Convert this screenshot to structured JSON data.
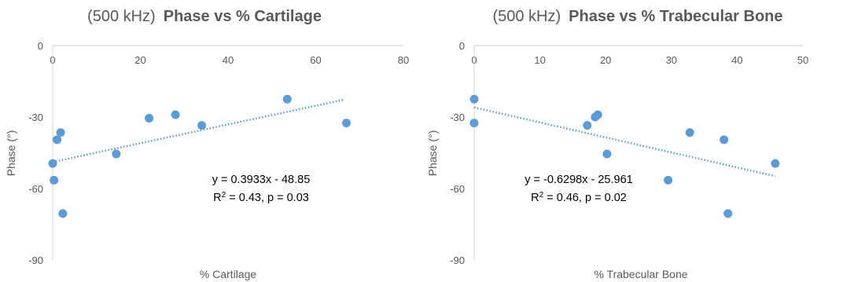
{
  "chart_data": [
    {
      "type": "scatter",
      "title_prefix": "(500 kHz)",
      "title_main": "Phase vs % Cartilage",
      "xlabel": "% Cartilage",
      "ylabel": "Phase (°)",
      "xlim": [
        0,
        80
      ],
      "ylim": [
        -90,
        0
      ],
      "xticks": [
        0,
        20,
        40,
        60,
        80
      ],
      "yticks": [
        0,
        -30,
        -60,
        -90
      ],
      "grid": false,
      "marker_color": "#5B9BD5",
      "trendline_color": "#5B9BD5",
      "x": [
        0,
        0.3,
        1,
        1.8,
        2.3,
        14.5,
        22,
        28,
        34,
        53.5,
        67
      ],
      "y": [
        -49.5,
        -56.5,
        -39.5,
        -36.5,
        -70.5,
        -45.5,
        -30.5,
        -29,
        -33.5,
        -22.5,
        -32.5
      ],
      "trendline": {
        "slope": 0.3933,
        "intercept": -48.85,
        "x_range": [
          0,
          66.5
        ]
      },
      "annotation": {
        "equation": "y = 0.3933x - 48.85",
        "r2_prefix": "R",
        "r2_sup": "2",
        "r2_rest": " = 0.43, p = 0.03"
      }
    },
    {
      "type": "scatter",
      "title_prefix": "(500 kHz)",
      "title_main": "Phase vs % Trabecular Bone",
      "xlabel": "% Trabecular Bone",
      "ylabel": "Phase (°)",
      "xlim": [
        0,
        50
      ],
      "ylim": [
        -90,
        0
      ],
      "xticks": [
        0,
        10,
        20,
        30,
        40,
        50
      ],
      "yticks": [
        0,
        -30,
        -60,
        -90
      ],
      "grid": false,
      "marker_color": "#5B9BD5",
      "trendline_color": "#5B9BD5",
      "x": [
        0,
        0,
        17.2,
        18.4,
        18.8,
        20.2,
        29.5,
        32.8,
        38,
        38.6,
        45.8
      ],
      "y": [
        -22.5,
        -32.5,
        -33.5,
        -30,
        -29,
        -45.5,
        -56.5,
        -36.5,
        -39.5,
        -70.5,
        -49.5
      ],
      "trendline": {
        "slope": -0.6298,
        "intercept": -25.961,
        "x_range": [
          0,
          45.8
        ]
      },
      "annotation": {
        "equation": "y = -0.6298x - 25.961",
        "r2_prefix": "R",
        "r2_sup": "2",
        "r2_rest": " = 0.46, p = 0.02"
      }
    }
  ]
}
